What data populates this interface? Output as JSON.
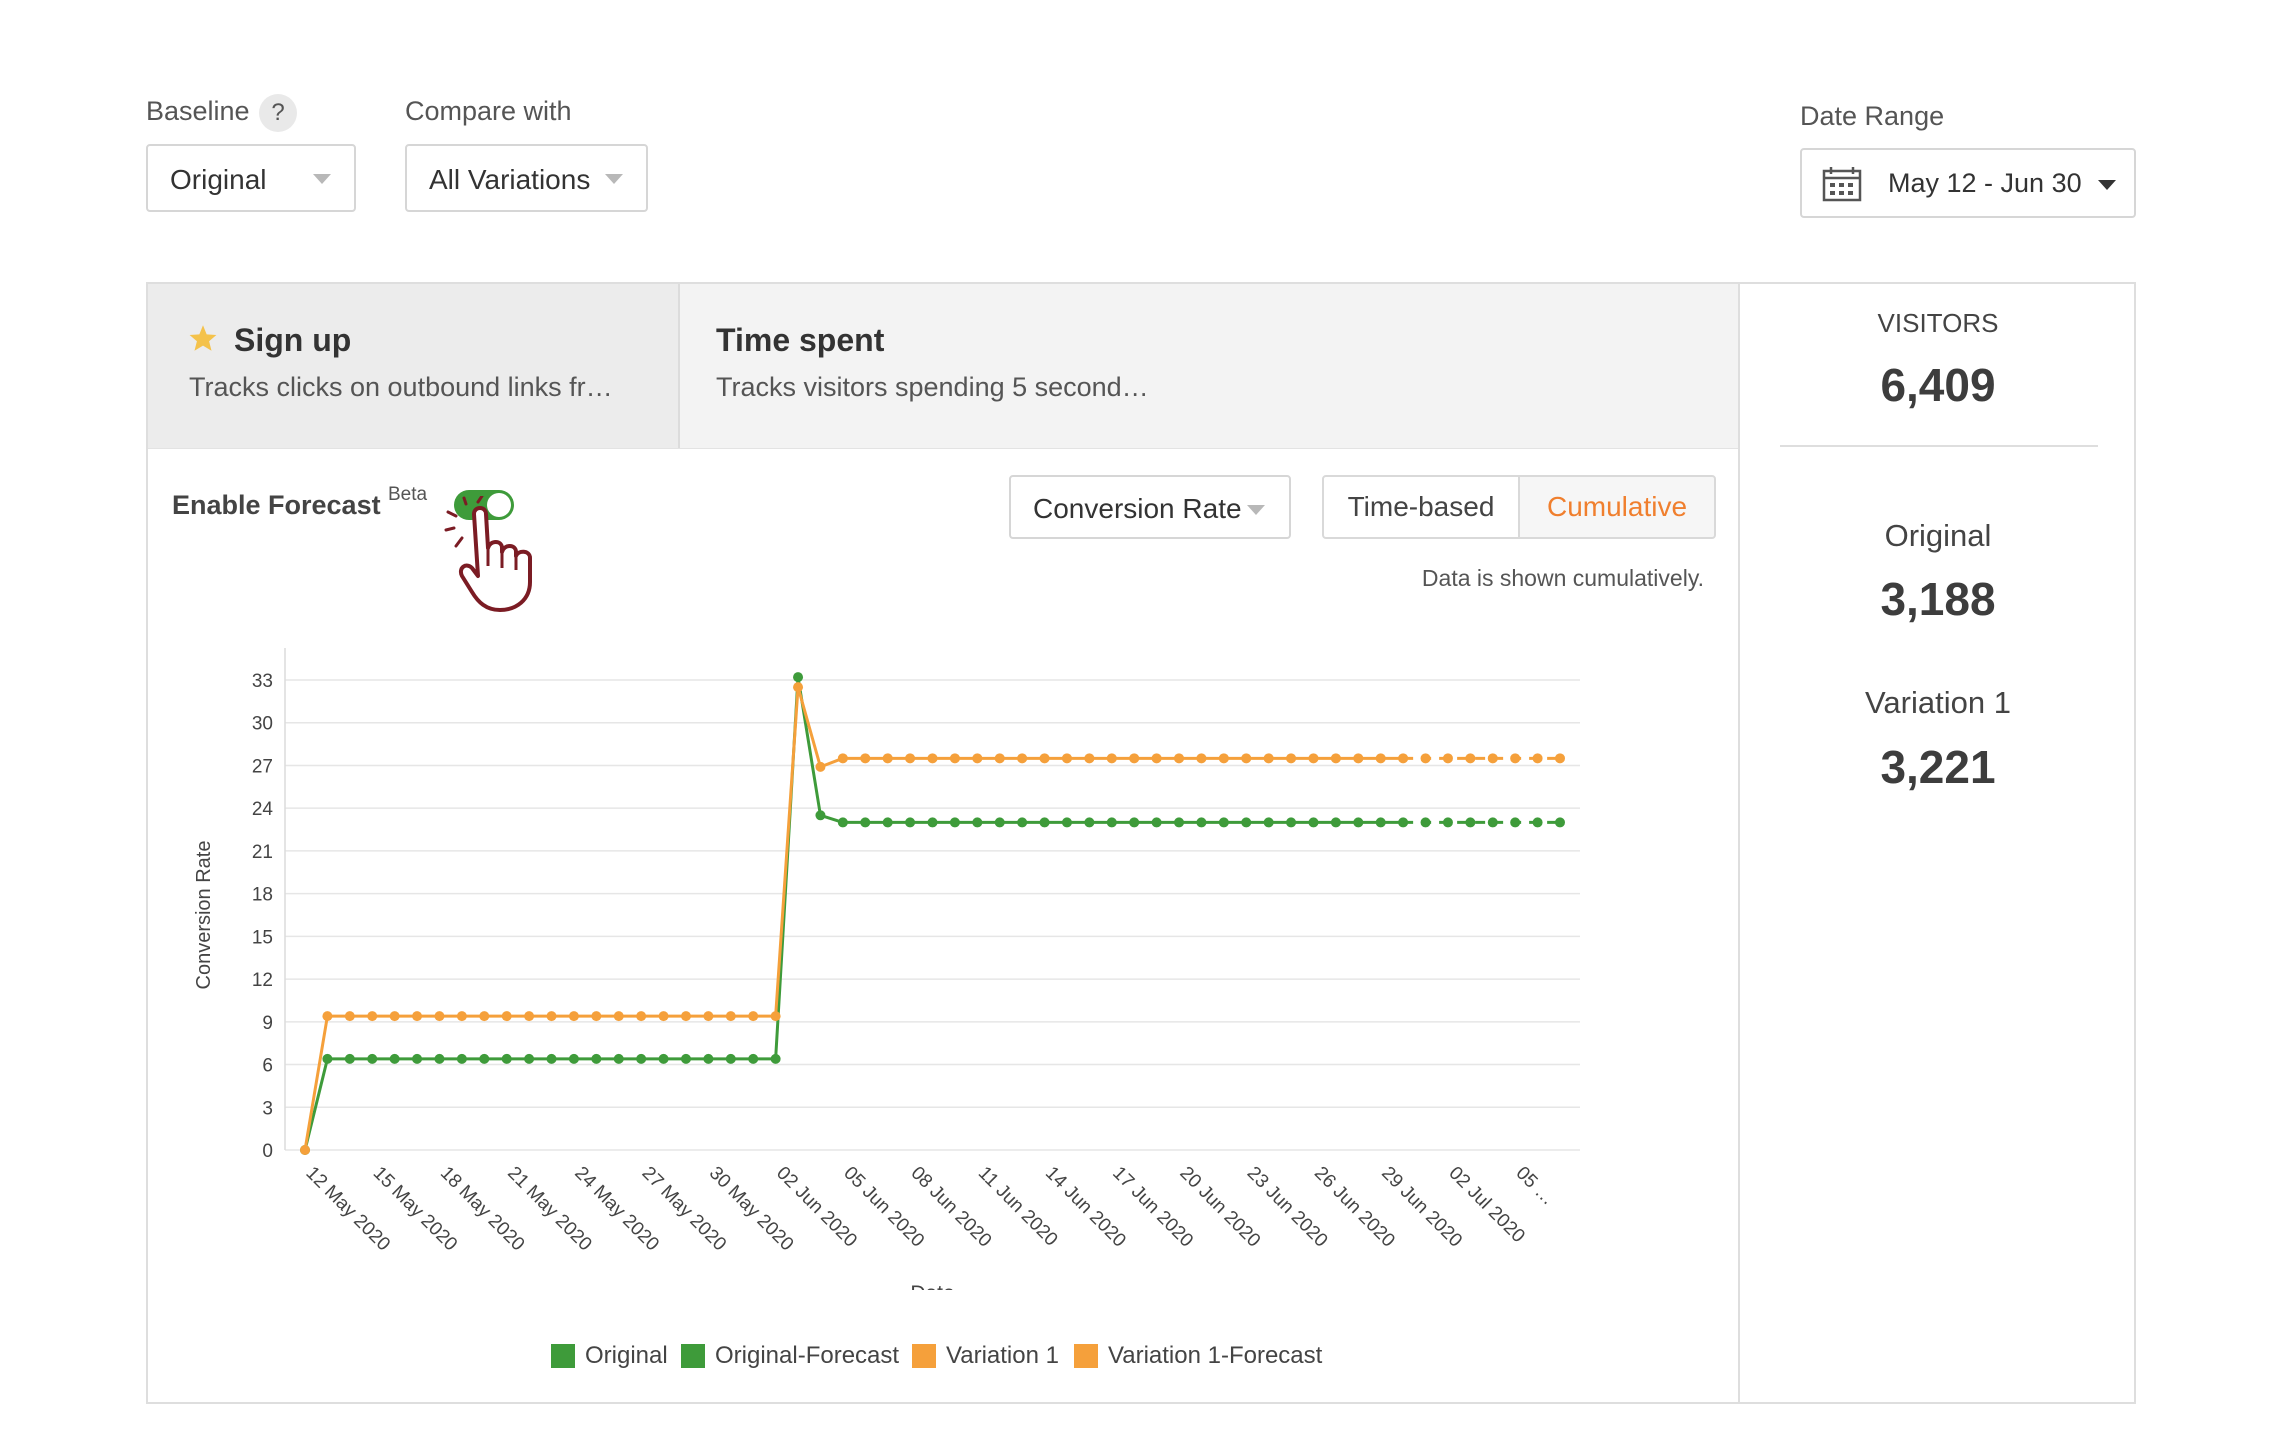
{
  "filters": {
    "baseline_label": "Baseline",
    "help_symbol": "?",
    "baseline_value": "Original",
    "compare_label": "Compare with",
    "compare_value": "All Variations",
    "date_range_label": "Date Range",
    "date_range_value": "May 12 - Jun 30"
  },
  "goals": [
    {
      "title": "Sign up",
      "description": "Tracks clicks on outbound links fr…",
      "starred": true,
      "active": true
    },
    {
      "title": "Time spent",
      "description": "Tracks visitors spending 5 second…",
      "starred": false,
      "active": false
    }
  ],
  "forecast": {
    "label": "Enable Forecast",
    "badge": "Beta",
    "enabled": true
  },
  "metric_select": {
    "value": "Conversion Rate"
  },
  "view_toggle": {
    "options": [
      "Time-based",
      "Cumulative"
    ],
    "selected": "Cumulative"
  },
  "data_note": "Data is shown cumulatively.",
  "side_stats": {
    "visitors_label": "VISITORS",
    "visitors_value": "6,409",
    "rows": [
      {
        "label": "Original",
        "value": "3,188"
      },
      {
        "label": "Variation 1",
        "value": "3,221"
      }
    ]
  },
  "colors": {
    "original": "#3e9b3a",
    "variation": "#f5a03b",
    "accent": "#f07f2e",
    "toggle_on": "#3e9b3a",
    "star": "#f4c24b"
  },
  "icons": {
    "help": "help-icon",
    "calendar": "calendar-icon",
    "star": "star-icon",
    "caret": "chevron-down-icon",
    "pointer": "pointing-hand-icon"
  },
  "chart_data": {
    "type": "line",
    "xlabel": "Date",
    "ylabel": "Conversion Rate",
    "ylim": [
      0,
      33
    ],
    "yticks": [
      0,
      3,
      6,
      9,
      12,
      15,
      18,
      21,
      24,
      27,
      30,
      33
    ],
    "grid": true,
    "legend_position": "bottom",
    "x_tick_labels": [
      "12 May 2020",
      "15 May 2020",
      "18 May 2020",
      "21 May 2020",
      "24 May 2020",
      "27 May 2020",
      "30 May 2020",
      "02 Jun 2020",
      "05 Jun 2020",
      "08 Jun 2020",
      "11 Jun 2020",
      "14 Jun 2020",
      "17 Jun 2020",
      "20 Jun 2020",
      "23 Jun 2020",
      "26 Jun 2020",
      "29 Jun 2020",
      "02 Jul 2020",
      "05 …"
    ],
    "x_start": "2020-05-12",
    "x_end": "2020-07-07",
    "series": [
      {
        "name": "Original",
        "dashed": false,
        "x": [
          "2020-05-12",
          "2020-05-13",
          "2020-05-14",
          "2020-05-15",
          "2020-05-16",
          "2020-05-17",
          "2020-05-18",
          "2020-05-19",
          "2020-05-20",
          "2020-05-21",
          "2020-05-22",
          "2020-05-23",
          "2020-05-24",
          "2020-05-25",
          "2020-05-26",
          "2020-05-27",
          "2020-05-28",
          "2020-05-29",
          "2020-05-30",
          "2020-05-31",
          "2020-06-01",
          "2020-06-02",
          "2020-06-03",
          "2020-06-04",
          "2020-06-05",
          "2020-06-06",
          "2020-06-07",
          "2020-06-08",
          "2020-06-09",
          "2020-06-10",
          "2020-06-11",
          "2020-06-12",
          "2020-06-13",
          "2020-06-14",
          "2020-06-15",
          "2020-06-16",
          "2020-06-17",
          "2020-06-18",
          "2020-06-19",
          "2020-06-20",
          "2020-06-21",
          "2020-06-22",
          "2020-06-23",
          "2020-06-24",
          "2020-06-25",
          "2020-06-26",
          "2020-06-27",
          "2020-06-28",
          "2020-06-29",
          "2020-06-30"
        ],
        "y": [
          0,
          6.4,
          6.4,
          6.4,
          6.4,
          6.4,
          6.4,
          6.4,
          6.4,
          6.4,
          6.4,
          6.4,
          6.4,
          6.4,
          6.4,
          6.4,
          6.4,
          6.4,
          6.4,
          6.4,
          6.4,
          6.4,
          33.2,
          23.5,
          23.0,
          23.0,
          23.0,
          23.0,
          23.0,
          23.0,
          23.0,
          23.0,
          23.0,
          23.0,
          23.0,
          23.0,
          23.0,
          23.0,
          23.0,
          23.0,
          23.0,
          23.0,
          23.0,
          23.0,
          23.0,
          23.0,
          23.0,
          23.0,
          23.0,
          23.0
        ]
      },
      {
        "name": "Original-Forecast",
        "dashed": true,
        "x": [
          "2020-06-30",
          "2020-07-01",
          "2020-07-02",
          "2020-07-03",
          "2020-07-04",
          "2020-07-05",
          "2020-07-06",
          "2020-07-07"
        ],
        "y": [
          23.0,
          23.0,
          23.0,
          23.0,
          23.0,
          23.0,
          23.0,
          23.0
        ]
      },
      {
        "name": "Variation 1",
        "dashed": false,
        "x": [
          "2020-05-12",
          "2020-05-13",
          "2020-05-14",
          "2020-05-15",
          "2020-05-16",
          "2020-05-17",
          "2020-05-18",
          "2020-05-19",
          "2020-05-20",
          "2020-05-21",
          "2020-05-22",
          "2020-05-23",
          "2020-05-24",
          "2020-05-25",
          "2020-05-26",
          "2020-05-27",
          "2020-05-28",
          "2020-05-29",
          "2020-05-30",
          "2020-05-31",
          "2020-06-01",
          "2020-06-02",
          "2020-06-03",
          "2020-06-04",
          "2020-06-05",
          "2020-06-06",
          "2020-06-07",
          "2020-06-08",
          "2020-06-09",
          "2020-06-10",
          "2020-06-11",
          "2020-06-12",
          "2020-06-13",
          "2020-06-14",
          "2020-06-15",
          "2020-06-16",
          "2020-06-17",
          "2020-06-18",
          "2020-06-19",
          "2020-06-20",
          "2020-06-21",
          "2020-06-22",
          "2020-06-23",
          "2020-06-24",
          "2020-06-25",
          "2020-06-26",
          "2020-06-27",
          "2020-06-28",
          "2020-06-29",
          "2020-06-30"
        ],
        "y": [
          0,
          9.4,
          9.4,
          9.4,
          9.4,
          9.4,
          9.4,
          9.4,
          9.4,
          9.4,
          9.4,
          9.4,
          9.4,
          9.4,
          9.4,
          9.4,
          9.4,
          9.4,
          9.4,
          9.4,
          9.4,
          9.4,
          32.5,
          26.9,
          27.5,
          27.5,
          27.5,
          27.5,
          27.5,
          27.5,
          27.5,
          27.5,
          27.5,
          27.5,
          27.5,
          27.5,
          27.5,
          27.5,
          27.5,
          27.5,
          27.5,
          27.5,
          27.5,
          27.5,
          27.5,
          27.5,
          27.5,
          27.5,
          27.5,
          27.5
        ]
      },
      {
        "name": "Variation 1-Forecast",
        "dashed": true,
        "x": [
          "2020-06-30",
          "2020-07-01",
          "2020-07-02",
          "2020-07-03",
          "2020-07-04",
          "2020-07-05",
          "2020-07-06",
          "2020-07-07"
        ],
        "y": [
          27.5,
          27.5,
          27.5,
          27.5,
          27.5,
          27.5,
          27.5,
          27.5
        ]
      }
    ]
  }
}
